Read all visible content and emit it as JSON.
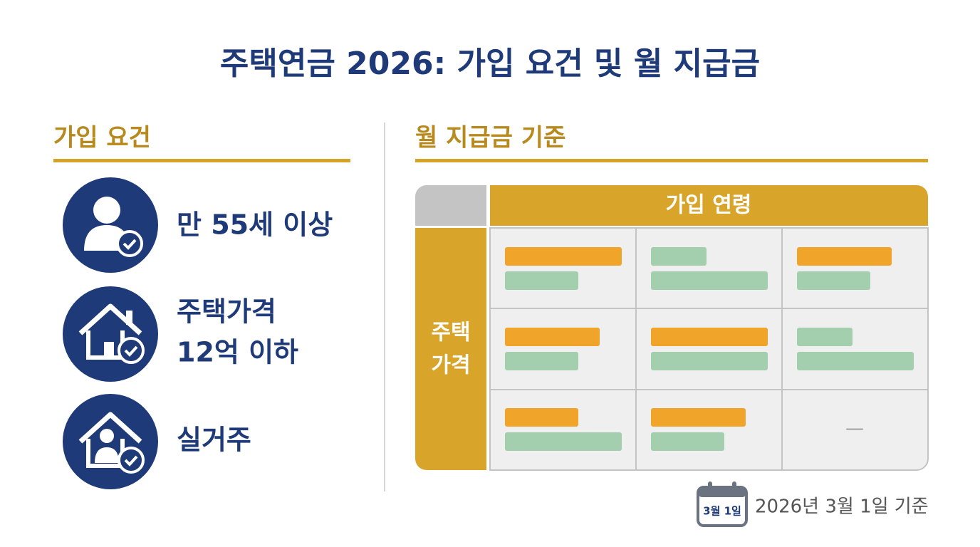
{
  "header": {
    "title": "주택연금 2026: 가입 요건 및 월 지급금"
  },
  "requirements": {
    "title": "가입 요건",
    "items": [
      {
        "lines": [
          "만 55세 이상"
        ]
      },
      {
        "lines": [
          "주택가격",
          "12억 이하"
        ]
      },
      {
        "lines": [
          "실거주"
        ]
      }
    ]
  },
  "payment": {
    "title": "월 지급금 기준",
    "table": {
      "column_header": "가입 연령",
      "row_header": [
        "주택",
        "가격"
      ],
      "empty_cell": "—"
    }
  },
  "footer": {
    "calendar_label": "3월 1일",
    "note": "2026년 3월 1일 기준"
  }
}
